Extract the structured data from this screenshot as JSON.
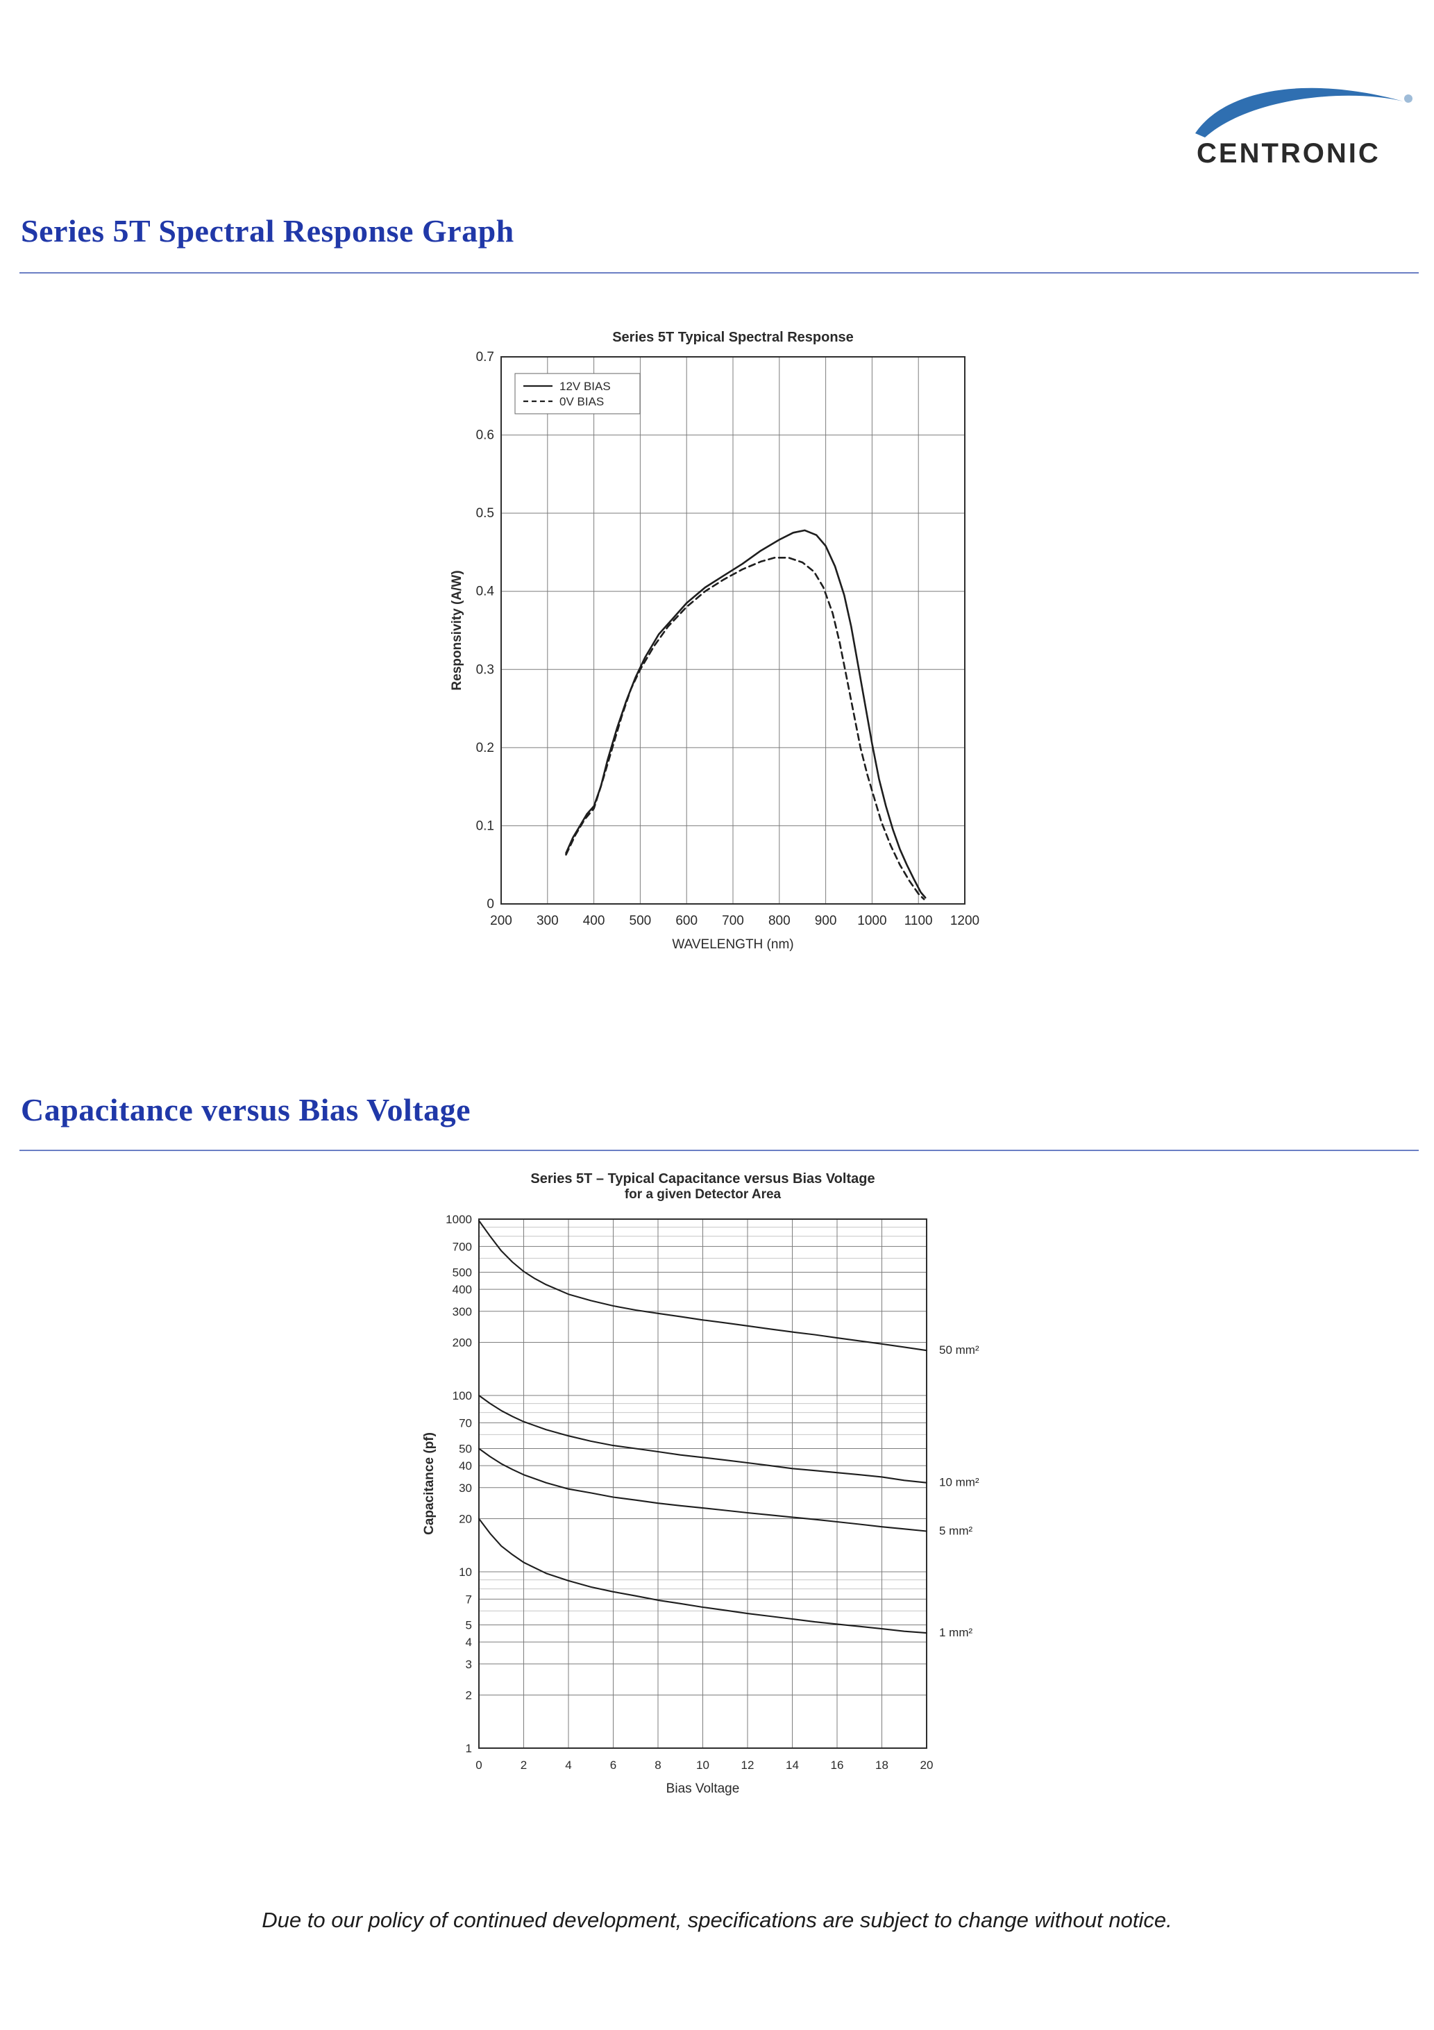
{
  "logo": {
    "text": "CENTRONIC"
  },
  "sections": [
    {
      "heading": "Series 5T Spectral Response Graph"
    },
    {
      "heading": "Capacitance versus Bias Voltage"
    }
  ],
  "footer": {
    "note": "Due to our policy of continued development, specifications are subject to change without notice."
  },
  "colors": {
    "heading_blue": "#2038a8",
    "rule_blue": "#6b7fc4",
    "logo_swoosh": "#2f6fb1",
    "curve_black": "#1e1e1e"
  },
  "chart_data": [
    {
      "type": "line",
      "title": "Series 5T Typical Spectral Response",
      "xlabel": "WAVELENGTH (nm)",
      "ylabel": "Responsivity (A/W)",
      "xscale": "linear",
      "yscale": "linear",
      "xlim": [
        200,
        1200
      ],
      "ylim": [
        0,
        0.7
      ],
      "x_ticks": [
        200,
        300,
        400,
        500,
        600,
        700,
        800,
        900,
        1000,
        1100,
        1200
      ],
      "y_ticks": [
        0,
        0.1,
        0.2,
        0.3,
        0.4,
        0.5,
        0.6,
        0.7
      ],
      "grid": true,
      "legend_position": "top-left",
      "series": [
        {
          "name": "12V BIAS",
          "dash": false,
          "points": [
            [
              340,
              0.065
            ],
            [
              355,
              0.085
            ],
            [
              370,
              0.1
            ],
            [
              385,
              0.115
            ],
            [
              400,
              0.125
            ],
            [
              415,
              0.15
            ],
            [
              430,
              0.185
            ],
            [
              450,
              0.225
            ],
            [
              470,
              0.26
            ],
            [
              490,
              0.29
            ],
            [
              510,
              0.315
            ],
            [
              540,
              0.345
            ],
            [
              570,
              0.365
            ],
            [
              600,
              0.385
            ],
            [
              640,
              0.405
            ],
            [
              680,
              0.42
            ],
            [
              720,
              0.435
            ],
            [
              760,
              0.452
            ],
            [
              800,
              0.466
            ],
            [
              830,
              0.475
            ],
            [
              855,
              0.478
            ],
            [
              880,
              0.472
            ],
            [
              900,
              0.458
            ],
            [
              920,
              0.432
            ],
            [
              940,
              0.395
            ],
            [
              955,
              0.355
            ],
            [
              970,
              0.305
            ],
            [
              985,
              0.255
            ],
            [
              1000,
              0.205
            ],
            [
              1015,
              0.16
            ],
            [
              1030,
              0.125
            ],
            [
              1045,
              0.095
            ],
            [
              1060,
              0.07
            ],
            [
              1075,
              0.05
            ],
            [
              1090,
              0.032
            ],
            [
              1105,
              0.015
            ],
            [
              1115,
              0.008
            ]
          ]
        },
        {
          "name": "0V BIAS",
          "dash": true,
          "points": [
            [
              340,
              0.063
            ],
            [
              360,
              0.088
            ],
            [
              380,
              0.108
            ],
            [
              400,
              0.122
            ],
            [
              420,
              0.16
            ],
            [
              440,
              0.2
            ],
            [
              460,
              0.24
            ],
            [
              480,
              0.275
            ],
            [
              500,
              0.3
            ],
            [
              530,
              0.33
            ],
            [
              560,
              0.355
            ],
            [
              600,
              0.38
            ],
            [
              640,
              0.4
            ],
            [
              680,
              0.415
            ],
            [
              720,
              0.428
            ],
            [
              760,
              0.438
            ],
            [
              790,
              0.443
            ],
            [
              820,
              0.443
            ],
            [
              850,
              0.437
            ],
            [
              875,
              0.425
            ],
            [
              895,
              0.405
            ],
            [
              915,
              0.372
            ],
            [
              930,
              0.335
            ],
            [
              945,
              0.29
            ],
            [
              960,
              0.245
            ],
            [
              975,
              0.2
            ],
            [
              990,
              0.165
            ],
            [
              1005,
              0.135
            ],
            [
              1020,
              0.105
            ],
            [
              1040,
              0.075
            ],
            [
              1060,
              0.05
            ],
            [
              1080,
              0.03
            ],
            [
              1100,
              0.013
            ],
            [
              1112,
              0.006
            ]
          ]
        }
      ]
    },
    {
      "type": "line",
      "title": "Series 5T – Typical Capacitance versus Bias Voltage",
      "subtitle": "for a given Detector Area",
      "xlabel": "Bias Voltage",
      "ylabel": "Capacitance (pf)",
      "xscale": "linear",
      "yscale": "log",
      "xlim": [
        0,
        20
      ],
      "ylim": [
        1,
        1000
      ],
      "x_ticks": [
        0,
        2,
        4,
        6,
        8,
        10,
        12,
        14,
        16,
        18,
        20
      ],
      "y_ticks": [
        1000,
        700,
        500,
        400,
        300,
        200,
        100,
        70,
        50,
        40,
        30,
        20,
        10,
        7,
        5,
        4,
        3,
        2,
        1
      ],
      "y_minor": [
        900,
        800,
        600,
        90,
        80,
        60,
        9,
        8,
        6
      ],
      "grid": true,
      "legend_position": "right-labels",
      "series": [
        {
          "name": "50 mm²",
          "dash": false,
          "points": [
            [
              0,
              980
            ],
            [
              0.5,
              800
            ],
            [
              1,
              660
            ],
            [
              1.5,
              570
            ],
            [
              2,
              505
            ],
            [
              2.5,
              460
            ],
            [
              3,
              425
            ],
            [
              4,
              375
            ],
            [
              5,
              345
            ],
            [
              6,
              322
            ],
            [
              7,
              305
            ],
            [
              8,
              292
            ],
            [
              9,
              280
            ],
            [
              10,
              268
            ],
            [
              11,
              258
            ],
            [
              12,
              248
            ],
            [
              13,
              238
            ],
            [
              14,
              229
            ],
            [
              15,
              221
            ],
            [
              16,
              212
            ],
            [
              17,
              204
            ],
            [
              18,
              196
            ],
            [
              19,
              188
            ],
            [
              20,
              180
            ]
          ]
        },
        {
          "name": "10 mm²",
          "dash": false,
          "points": [
            [
              0,
              100
            ],
            [
              0.5,
              90
            ],
            [
              1,
              82
            ],
            [
              1.5,
              76
            ],
            [
              2,
              71
            ],
            [
              3,
              64
            ],
            [
              4,
              59
            ],
            [
              5,
              55
            ],
            [
              6,
              52
            ],
            [
              7,
              50
            ],
            [
              8,
              48
            ],
            [
              9,
              46
            ],
            [
              10,
              44.5
            ],
            [
              11,
              43
            ],
            [
              12,
              41.5
            ],
            [
              13,
              40
            ],
            [
              14,
              38.5
            ],
            [
              15,
              37.5
            ],
            [
              16,
              36.5
            ],
            [
              17,
              35.5
            ],
            [
              18,
              34.5
            ],
            [
              19,
              33
            ],
            [
              20,
              32
            ]
          ]
        },
        {
          "name": "5 mm²",
          "dash": false,
          "points": [
            [
              0,
              50
            ],
            [
              0.5,
              45
            ],
            [
              1,
              41
            ],
            [
              1.5,
              38
            ],
            [
              2,
              35.5
            ],
            [
              3,
              32
            ],
            [
              4,
              29.5
            ],
            [
              5,
              28
            ],
            [
              6,
              26.5
            ],
            [
              7,
              25.5
            ],
            [
              8,
              24.5
            ],
            [
              9,
              23.7
            ],
            [
              10,
              23
            ],
            [
              11,
              22.3
            ],
            [
              12,
              21.6
            ],
            [
              13,
              21
            ],
            [
              14,
              20.4
            ],
            [
              15,
              19.8
            ],
            [
              16,
              19.2
            ],
            [
              17,
              18.6
            ],
            [
              18,
              18
            ],
            [
              19,
              17.5
            ],
            [
              20,
              17
            ]
          ]
        },
        {
          "name": "1 mm²",
          "dash": false,
          "points": [
            [
              0,
              20
            ],
            [
              0.5,
              16.5
            ],
            [
              1,
              14
            ],
            [
              1.5,
              12.5
            ],
            [
              2,
              11.3
            ],
            [
              3,
              9.8
            ],
            [
              4,
              8.9
            ],
            [
              5,
              8.2
            ],
            [
              6,
              7.7
            ],
            [
              7,
              7.3
            ],
            [
              8,
              6.9
            ],
            [
              9,
              6.6
            ],
            [
              10,
              6.3
            ],
            [
              11,
              6.05
            ],
            [
              12,
              5.8
            ],
            [
              13,
              5.6
            ],
            [
              14,
              5.4
            ],
            [
              15,
              5.2
            ],
            [
              16,
              5.05
            ],
            [
              17,
              4.9
            ],
            [
              18,
              4.75
            ],
            [
              19,
              4.6
            ],
            [
              20,
              4.5
            ]
          ]
        }
      ]
    }
  ]
}
